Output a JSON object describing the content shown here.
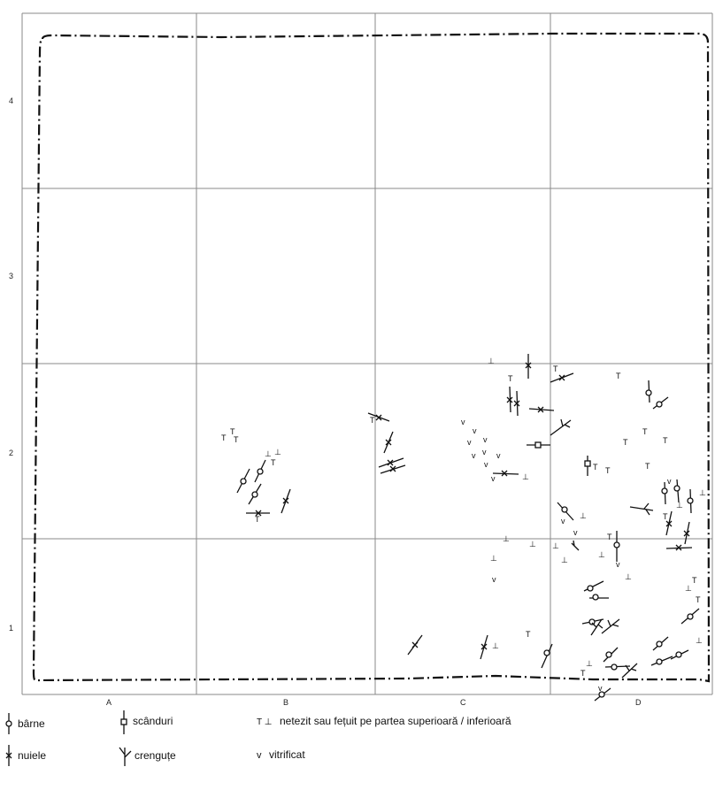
{
  "grid": {
    "columns": [
      "A",
      "B",
      "C",
      "D"
    ],
    "rows": [
      "4",
      "3",
      "2",
      "1"
    ]
  },
  "legend": {
    "barne": "bârne",
    "scanduri": "scânduri",
    "nuiele": "nuiele",
    "crengute": "crenguțe",
    "netezit_symbol": "T ⊥",
    "netezit": "netezit sau fețuit pe partea superioară / inferioară",
    "vitrificat_symbol": "v",
    "vitrificat": "vitrificat"
  },
  "colors": {
    "ink": "#111111",
    "grid": "#888888"
  }
}
